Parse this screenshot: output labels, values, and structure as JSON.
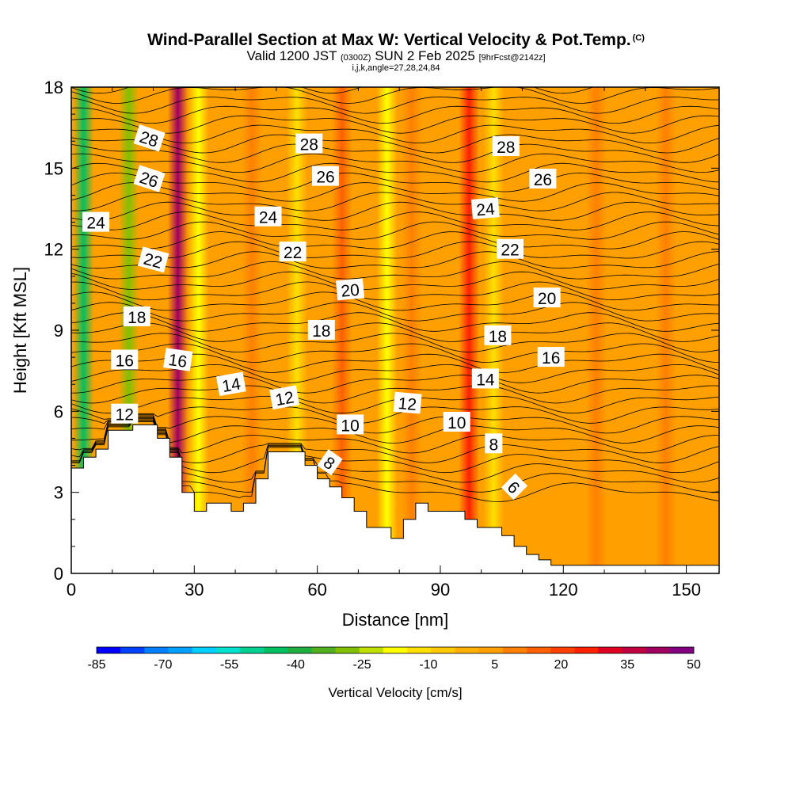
{
  "header": {
    "title": "Wind-Parallel Section at Max W: Vertical Velocity & Pot.Temp.",
    "copyright": "(C)",
    "valid_prefix": "Valid 1200 JST",
    "valid_utc": "(0300Z)",
    "valid_date": "SUN 2 Feb 2025",
    "forecast": "[9hrFcst@2142z]",
    "params": "i,j,k,angle=27,28,24,84"
  },
  "chart_data": {
    "type": "heatmap",
    "xlabel": "Distance [nm]",
    "ylabel": "Height [Kft MSL]",
    "xlim": [
      0,
      158
    ],
    "ylim": [
      0,
      18
    ],
    "x_ticks": [
      "0",
      "30",
      "60",
      "90",
      "120",
      "150"
    ],
    "y_ticks": [
      "0",
      "3",
      "6",
      "9",
      "12",
      "15",
      "18"
    ],
    "colorbar": {
      "label": "Vertical Velocity [cm/s]",
      "tick_labels": [
        "-85",
        "-70",
        "-55",
        "-40",
        "-25",
        "-10",
        "5",
        "20",
        "35",
        "50"
      ],
      "colors": [
        "#0000ff",
        "#0040ff",
        "#0080ff",
        "#00a0ff",
        "#00d0ff",
        "#00e0d0",
        "#00d090",
        "#00c060",
        "#20b040",
        "#50b020",
        "#80c000",
        "#c0e000",
        "#ffff00",
        "#ffe000",
        "#ffc800",
        "#ffb000",
        "#ffa000",
        "#ff8000",
        "#ff6000",
        "#ff4000",
        "#ff2000",
        "#e00020",
        "#c00040",
        "#a00060",
        "#800080"
      ]
    },
    "terrain_profile": {
      "x": [
        0,
        3,
        3,
        6,
        6,
        9,
        9,
        15,
        15,
        21,
        21,
        24,
        24,
        27,
        27,
        30,
        30,
        33,
        33,
        39,
        39,
        42,
        42,
        45,
        45,
        48,
        48,
        51,
        51,
        57,
        57,
        60,
        60,
        63,
        63,
        66,
        66,
        69,
        69,
        72,
        72,
        78,
        78,
        81,
        81,
        84,
        84,
        87,
        87,
        90,
        90,
        96,
        96,
        99,
        99,
        105,
        105,
        108,
        108,
        111,
        111,
        114,
        114,
        117,
        117,
        120,
        120,
        158
      ],
      "y": [
        3.9,
        3.9,
        4.3,
        4.3,
        4.6,
        4.6,
        5.3,
        5.3,
        5.5,
        5.5,
        5.0,
        5.0,
        4.3,
        4.3,
        3.0,
        3.0,
        2.3,
        2.3,
        2.6,
        2.6,
        2.3,
        2.3,
        2.6,
        2.6,
        3.5,
        3.5,
        4.5,
        4.5,
        4.5,
        4.5,
        4.0,
        4.0,
        3.5,
        3.5,
        3.2,
        3.2,
        2.8,
        2.8,
        2.3,
        2.3,
        1.7,
        1.7,
        1.3,
        1.3,
        2.0,
        2.0,
        2.6,
        2.6,
        2.3,
        2.3,
        2.3,
        2.3,
        2.0,
        2.0,
        1.7,
        1.7,
        1.4,
        1.4,
        1.0,
        1.0,
        0.7,
        0.7,
        0.5,
        0.5,
        0.3,
        0.3,
        0.3,
        0.3
      ]
    },
    "velocity_bands": [
      {
        "x": 3,
        "w": -45
      },
      {
        "x": 14,
        "w": -30
      },
      {
        "x": 26,
        "w": 40
      },
      {
        "x": 31,
        "w": -15
      },
      {
        "x": 44,
        "w": 12
      },
      {
        "x": 55,
        "w": -12
      },
      {
        "x": 66,
        "w": 15
      },
      {
        "x": 77,
        "w": -20
      },
      {
        "x": 83,
        "w": 10
      },
      {
        "x": 97,
        "w": 28
      },
      {
        "x": 103,
        "w": -12
      },
      {
        "x": 128,
        "w": 12
      },
      {
        "x": 145,
        "w": 8
      }
    ],
    "theta_contours": [
      6,
      8,
      10,
      12,
      14,
      16,
      18,
      20,
      22,
      24,
      26,
      28
    ],
    "contour_labels": [
      {
        "text": "28",
        "x": 19,
        "y": 16.1,
        "angle": 18
      },
      {
        "text": "28",
        "x": 58,
        "y": 15.9,
        "angle": 0
      },
      {
        "text": "28",
        "x": 106,
        "y": 15.8,
        "angle": 0
      },
      {
        "text": "26",
        "x": 19,
        "y": 14.6,
        "angle": 18
      },
      {
        "text": "26",
        "x": 62,
        "y": 14.7,
        "angle": 0
      },
      {
        "text": "26",
        "x": 115,
        "y": 14.6,
        "angle": 0
      },
      {
        "text": "24",
        "x": 6,
        "y": 13.0,
        "angle": 0
      },
      {
        "text": "24",
        "x": 48,
        "y": 13.2,
        "angle": 0
      },
      {
        "text": "24",
        "x": 101,
        "y": 13.5,
        "angle": -5
      },
      {
        "text": "22",
        "x": 20,
        "y": 11.6,
        "angle": 15
      },
      {
        "text": "22",
        "x": 54,
        "y": 11.9,
        "angle": 0
      },
      {
        "text": "22",
        "x": 107,
        "y": 12.0,
        "angle": 0
      },
      {
        "text": "20",
        "x": 68,
        "y": 10.5,
        "angle": -5
      },
      {
        "text": "20",
        "x": 116,
        "y": 10.2,
        "angle": 0
      },
      {
        "text": "18",
        "x": 16,
        "y": 9.5,
        "angle": 0
      },
      {
        "text": "18",
        "x": 61,
        "y": 9.0,
        "angle": 0
      },
      {
        "text": "18",
        "x": 104,
        "y": 8.8,
        "angle": 0
      },
      {
        "text": "16",
        "x": 13,
        "y": 7.9,
        "angle": 0
      },
      {
        "text": "16",
        "x": 26,
        "y": 7.9,
        "angle": 8
      },
      {
        "text": "16",
        "x": 117,
        "y": 8.0,
        "angle": 0
      },
      {
        "text": "14",
        "x": 39,
        "y": 7.0,
        "angle": -10
      },
      {
        "text": "14",
        "x": 101,
        "y": 7.2,
        "angle": 0
      },
      {
        "text": "12",
        "x": 13,
        "y": 5.9,
        "angle": 0
      },
      {
        "text": "12",
        "x": 52,
        "y": 6.5,
        "angle": -10
      },
      {
        "text": "12",
        "x": 82,
        "y": 6.3,
        "angle": 5
      },
      {
        "text": "10",
        "x": 68,
        "y": 5.5,
        "angle": 0
      },
      {
        "text": "10",
        "x": 94,
        "y": 5.6,
        "angle": 0
      },
      {
        "text": "8",
        "x": 63,
        "y": 4.1,
        "angle": 35
      },
      {
        "text": "8",
        "x": 103,
        "y": 4.8,
        "angle": 0
      },
      {
        "text": "6",
        "x": 108,
        "y": 3.2,
        "angle": 45
      }
    ]
  }
}
